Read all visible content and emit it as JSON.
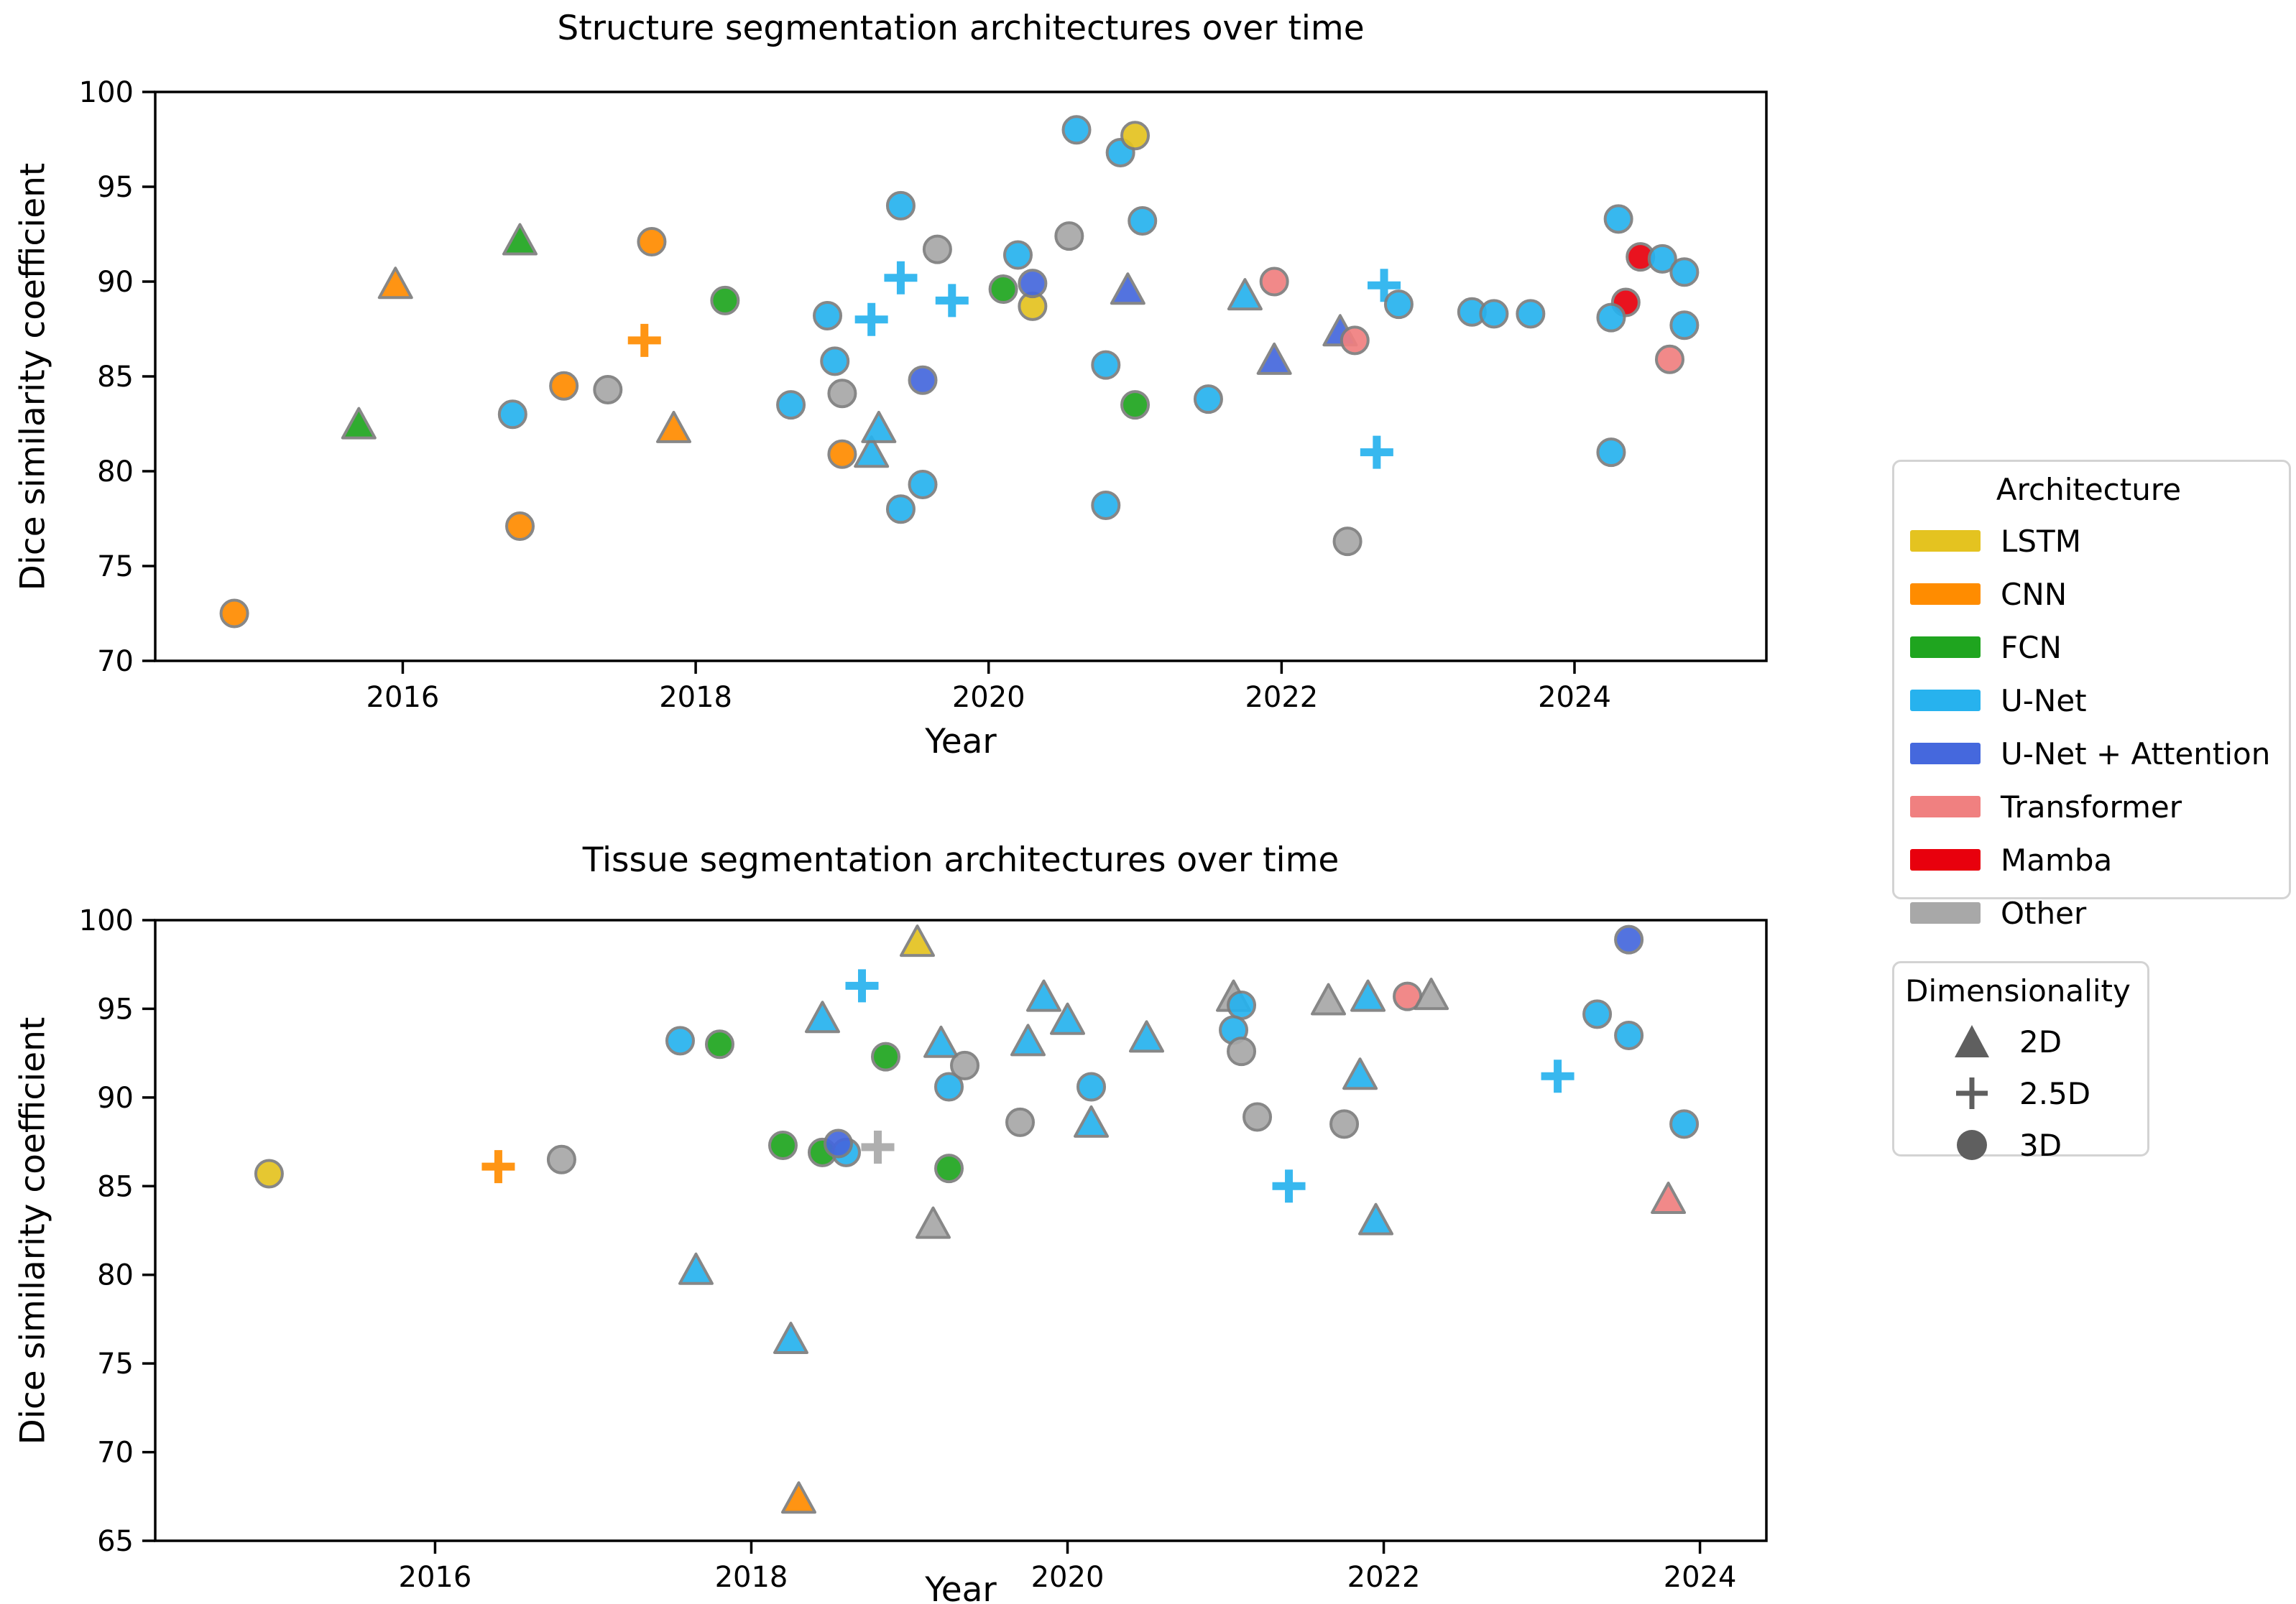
{
  "figure": {
    "background": "#ffffff",
    "marker_edge_color": "#7d7d7d",
    "axis_color": "#000000"
  },
  "colors": {
    "LSTM": "#e4c320",
    "CNN": "#ff8c00",
    "FCN": "#1fa51f",
    "U-Net": "#27b2ee",
    "U-Net + Attention": "#4568dd",
    "Transformer": "#f08080",
    "Mamba": "#e8000d",
    "Other": "#a8a8a8"
  },
  "legend_architecture": {
    "title": "Architecture",
    "entries": [
      {
        "label": "LSTM",
        "color": "#e4c320"
      },
      {
        "label": "CNN",
        "color": "#ff8c00"
      },
      {
        "label": "FCN",
        "color": "#1fa51f"
      },
      {
        "label": "U-Net",
        "color": "#27b2ee"
      },
      {
        "label": "U-Net + Attention",
        "color": "#4568dd"
      },
      {
        "label": "Transformer",
        "color": "#f08080"
      },
      {
        "label": "Mamba",
        "color": "#e8000d"
      },
      {
        "label": "Other",
        "color": "#a8a8a8"
      }
    ]
  },
  "legend_dimensionality": {
    "title": "Dimensionality",
    "marker_color": "#5f5f5f",
    "entries": [
      {
        "label": "2D",
        "marker": "triangle"
      },
      {
        "label": "2.5D",
        "marker": "plus"
      },
      {
        "label": "3D",
        "marker": "circle"
      }
    ]
  },
  "chart_data": {
    "type": "scatter",
    "charts": [
      {
        "id": "structure",
        "title": "Structure segmentation architectures over time",
        "xlabel": "Year",
        "ylabel": "Dice similarity coefficient",
        "xlim": [
          2014.31,
          2025.31
        ],
        "ylim": [
          70,
          100
        ],
        "xticks": [
          2016,
          2018,
          2020,
          2022,
          2024
        ],
        "yticks": [
          70,
          75,
          80,
          85,
          90,
          95,
          100
        ],
        "grid": false,
        "points": [
          {
            "x": 2014.85,
            "y": 72.5,
            "arch": "CNN",
            "dim": "3D"
          },
          {
            "x": 2015.7,
            "y": 82.4,
            "arch": "FCN",
            "dim": "2D"
          },
          {
            "x": 2015.95,
            "y": 89.8,
            "arch": "CNN",
            "dim": "2D"
          },
          {
            "x": 2016.75,
            "y": 83.0,
            "arch": "U-Net",
            "dim": "3D"
          },
          {
            "x": 2016.8,
            "y": 92.1,
            "arch": "FCN",
            "dim": "2D"
          },
          {
            "x": 2016.8,
            "y": 77.1,
            "arch": "CNN",
            "dim": "3D"
          },
          {
            "x": 2017.1,
            "y": 84.5,
            "arch": "CNN",
            "dim": "3D"
          },
          {
            "x": 2017.4,
            "y": 84.3,
            "arch": "Other",
            "dim": "3D"
          },
          {
            "x": 2017.65,
            "y": 86.9,
            "arch": "CNN",
            "dim": "2.5D"
          },
          {
            "x": 2017.7,
            "y": 92.1,
            "arch": "CNN",
            "dim": "3D"
          },
          {
            "x": 2017.85,
            "y": 82.2,
            "arch": "CNN",
            "dim": "2D"
          },
          {
            "x": 2018.2,
            "y": 89.0,
            "arch": "FCN",
            "dim": "3D"
          },
          {
            "x": 2018.65,
            "y": 83.5,
            "arch": "U-Net",
            "dim": "3D"
          },
          {
            "x": 2018.9,
            "y": 88.2,
            "arch": "U-Net",
            "dim": "3D"
          },
          {
            "x": 2018.95,
            "y": 85.8,
            "arch": "U-Net",
            "dim": "3D"
          },
          {
            "x": 2019.0,
            "y": 84.1,
            "arch": "Other",
            "dim": "3D"
          },
          {
            "x": 2019.0,
            "y": 80.9,
            "arch": "CNN",
            "dim": "3D"
          },
          {
            "x": 2019.2,
            "y": 88.0,
            "arch": "U-Net",
            "dim": "2.5D"
          },
          {
            "x": 2019.2,
            "y": 80.9,
            "arch": "U-Net",
            "dim": "2D"
          },
          {
            "x": 2019.25,
            "y": 82.2,
            "arch": "U-Net",
            "dim": "2D"
          },
          {
            "x": 2019.4,
            "y": 94.0,
            "arch": "U-Net",
            "dim": "3D"
          },
          {
            "x": 2019.4,
            "y": 90.2,
            "arch": "U-Net",
            "dim": "2.5D"
          },
          {
            "x": 2019.4,
            "y": 78.0,
            "arch": "U-Net",
            "dim": "3D"
          },
          {
            "x": 2019.55,
            "y": 84.8,
            "arch": "U-Net + Attention",
            "dim": "3D"
          },
          {
            "x": 2019.55,
            "y": 79.3,
            "arch": "U-Net",
            "dim": "3D"
          },
          {
            "x": 2019.65,
            "y": 91.7,
            "arch": "Other",
            "dim": "3D"
          },
          {
            "x": 2019.75,
            "y": 89.0,
            "arch": "U-Net",
            "dim": "2.5D"
          },
          {
            "x": 2020.1,
            "y": 89.6,
            "arch": "FCN",
            "dim": "3D"
          },
          {
            "x": 2020.2,
            "y": 91.4,
            "arch": "U-Net",
            "dim": "3D"
          },
          {
            "x": 2020.3,
            "y": 88.7,
            "arch": "LSTM",
            "dim": "3D"
          },
          {
            "x": 2020.3,
            "y": 89.9,
            "arch": "U-Net + Attention",
            "dim": "3D"
          },
          {
            "x": 2020.55,
            "y": 92.4,
            "arch": "Other",
            "dim": "3D"
          },
          {
            "x": 2020.6,
            "y": 98.0,
            "arch": "U-Net",
            "dim": "3D"
          },
          {
            "x": 2020.8,
            "y": 85.6,
            "arch": "U-Net",
            "dim": "3D"
          },
          {
            "x": 2020.8,
            "y": 78.2,
            "arch": "U-Net",
            "dim": "3D"
          },
          {
            "x": 2020.9,
            "y": 96.8,
            "arch": "U-Net",
            "dim": "3D"
          },
          {
            "x": 2020.95,
            "y": 89.5,
            "arch": "U-Net + Attention",
            "dim": "2D"
          },
          {
            "x": 2021.0,
            "y": 97.7,
            "arch": "LSTM",
            "dim": "3D"
          },
          {
            "x": 2021.0,
            "y": 83.5,
            "arch": "FCN",
            "dim": "3D"
          },
          {
            "x": 2021.05,
            "y": 93.2,
            "arch": "U-Net",
            "dim": "3D"
          },
          {
            "x": 2021.5,
            "y": 83.8,
            "arch": "U-Net",
            "dim": "3D"
          },
          {
            "x": 2021.75,
            "y": 89.2,
            "arch": "U-Net",
            "dim": "2D"
          },
          {
            "x": 2021.95,
            "y": 90.0,
            "arch": "Transformer",
            "dim": "3D"
          },
          {
            "x": 2021.95,
            "y": 85.8,
            "arch": "U-Net + Attention",
            "dim": "2D"
          },
          {
            "x": 2022.4,
            "y": 87.3,
            "arch": "U-Net + Attention",
            "dim": "2D"
          },
          {
            "x": 2022.45,
            "y": 76.3,
            "arch": "Other",
            "dim": "3D"
          },
          {
            "x": 2022.5,
            "y": 86.9,
            "arch": "Transformer",
            "dim": "3D"
          },
          {
            "x": 2022.65,
            "y": 81.0,
            "arch": "U-Net",
            "dim": "2.5D"
          },
          {
            "x": 2022.7,
            "y": 89.8,
            "arch": "U-Net",
            "dim": "2.5D"
          },
          {
            "x": 2022.8,
            "y": 88.8,
            "arch": "U-Net",
            "dim": "3D"
          },
          {
            "x": 2023.3,
            "y": 88.4,
            "arch": "U-Net",
            "dim": "3D"
          },
          {
            "x": 2023.45,
            "y": 88.3,
            "arch": "U-Net",
            "dim": "3D"
          },
          {
            "x": 2023.7,
            "y": 88.3,
            "arch": "U-Net",
            "dim": "3D"
          },
          {
            "x": 2024.35,
            "y": 88.9,
            "arch": "Mamba",
            "dim": "3D"
          },
          {
            "x": 2024.25,
            "y": 88.1,
            "arch": "U-Net",
            "dim": "3D"
          },
          {
            "x": 2024.25,
            "y": 81.0,
            "arch": "U-Net",
            "dim": "3D"
          },
          {
            "x": 2024.3,
            "y": 93.3,
            "arch": "U-Net",
            "dim": "3D"
          },
          {
            "x": 2024.45,
            "y": 91.3,
            "arch": "Mamba",
            "dim": "3D"
          },
          {
            "x": 2024.6,
            "y": 91.2,
            "arch": "U-Net",
            "dim": "3D"
          },
          {
            "x": 2024.65,
            "y": 85.9,
            "arch": "Transformer",
            "dim": "3D"
          },
          {
            "x": 2024.75,
            "y": 90.5,
            "arch": "U-Net",
            "dim": "3D"
          },
          {
            "x": 2024.75,
            "y": 87.7,
            "arch": "U-Net",
            "dim": "3D"
          }
        ]
      },
      {
        "id": "tissue",
        "title": "Tissue segmentation architectures over time",
        "xlabel": "Year",
        "ylabel": "Dice similarity coefficient",
        "xlim": [
          2014.23,
          2024.42
        ],
        "ylim": [
          65,
          100
        ],
        "xticks": [
          2016,
          2018,
          2020,
          2022,
          2024
        ],
        "yticks": [
          65,
          70,
          75,
          80,
          85,
          90,
          95,
          100
        ],
        "grid": false,
        "points": [
          {
            "x": 2014.95,
            "y": 85.7,
            "arch": "LSTM",
            "dim": "3D"
          },
          {
            "x": 2016.4,
            "y": 86.1,
            "arch": "CNN",
            "dim": "2.5D"
          },
          {
            "x": 2016.8,
            "y": 86.5,
            "arch": "Other",
            "dim": "3D"
          },
          {
            "x": 2017.55,
            "y": 93.2,
            "arch": "U-Net",
            "dim": "3D"
          },
          {
            "x": 2017.65,
            "y": 80.2,
            "arch": "U-Net",
            "dim": "2D"
          },
          {
            "x": 2017.8,
            "y": 93.0,
            "arch": "FCN",
            "dim": "3D"
          },
          {
            "x": 2018.2,
            "y": 87.3,
            "arch": "FCN",
            "dim": "3D"
          },
          {
            "x": 2018.25,
            "y": 76.3,
            "arch": "U-Net",
            "dim": "2D"
          },
          {
            "x": 2018.3,
            "y": 67.3,
            "arch": "CNN",
            "dim": "2D"
          },
          {
            "x": 2018.45,
            "y": 94.4,
            "arch": "U-Net",
            "dim": "2D"
          },
          {
            "x": 2018.45,
            "y": 86.9,
            "arch": "FCN",
            "dim": "3D"
          },
          {
            "x": 2018.6,
            "y": 86.9,
            "arch": "U-Net",
            "dim": "3D"
          },
          {
            "x": 2018.55,
            "y": 87.4,
            "arch": "U-Net + Attention",
            "dim": "3D"
          },
          {
            "x": 2018.7,
            "y": 96.3,
            "arch": "U-Net",
            "dim": "2.5D"
          },
          {
            "x": 2018.8,
            "y": 87.2,
            "arch": "Other",
            "dim": "2.5D"
          },
          {
            "x": 2018.85,
            "y": 92.3,
            "arch": "FCN",
            "dim": "3D"
          },
          {
            "x": 2019.05,
            "y": 98.7,
            "arch": "LSTM",
            "dim": "2D"
          },
          {
            "x": 2019.15,
            "y": 82.8,
            "arch": "Other",
            "dim": "2D"
          },
          {
            "x": 2019.2,
            "y": 93.0,
            "arch": "U-Net",
            "dim": "2D"
          },
          {
            "x": 2019.25,
            "y": 90.6,
            "arch": "U-Net",
            "dim": "3D"
          },
          {
            "x": 2019.25,
            "y": 86.0,
            "arch": "FCN",
            "dim": "3D"
          },
          {
            "x": 2019.35,
            "y": 91.8,
            "arch": "Other",
            "dim": "3D"
          },
          {
            "x": 2019.7,
            "y": 88.6,
            "arch": "Other",
            "dim": "3D"
          },
          {
            "x": 2019.75,
            "y": 93.1,
            "arch": "U-Net",
            "dim": "2D"
          },
          {
            "x": 2019.85,
            "y": 95.6,
            "arch": "U-Net",
            "dim": "2D"
          },
          {
            "x": 2020.0,
            "y": 94.3,
            "arch": "U-Net",
            "dim": "2D"
          },
          {
            "x": 2020.15,
            "y": 90.6,
            "arch": "U-Net",
            "dim": "3D"
          },
          {
            "x": 2020.15,
            "y": 88.5,
            "arch": "U-Net",
            "dim": "2D"
          },
          {
            "x": 2020.5,
            "y": 93.3,
            "arch": "U-Net",
            "dim": "2D"
          },
          {
            "x": 2021.05,
            "y": 95.6,
            "arch": "Other",
            "dim": "2D"
          },
          {
            "x": 2021.1,
            "y": 95.2,
            "arch": "U-Net",
            "dim": "3D"
          },
          {
            "x": 2021.05,
            "y": 93.8,
            "arch": "U-Net",
            "dim": "3D"
          },
          {
            "x": 2021.1,
            "y": 92.6,
            "arch": "Other",
            "dim": "3D"
          },
          {
            "x": 2021.2,
            "y": 88.9,
            "arch": "Other",
            "dim": "3D"
          },
          {
            "x": 2021.4,
            "y": 85.0,
            "arch": "U-Net",
            "dim": "2.5D"
          },
          {
            "x": 2021.65,
            "y": 95.4,
            "arch": "Other",
            "dim": "2D"
          },
          {
            "x": 2021.9,
            "y": 95.6,
            "arch": "U-Net",
            "dim": "2D"
          },
          {
            "x": 2021.85,
            "y": 91.2,
            "arch": "U-Net",
            "dim": "2D"
          },
          {
            "x": 2021.75,
            "y": 88.5,
            "arch": "Other",
            "dim": "3D"
          },
          {
            "x": 2021.95,
            "y": 83.0,
            "arch": "U-Net",
            "dim": "2D"
          },
          {
            "x": 2022.15,
            "y": 95.7,
            "arch": "Transformer",
            "dim": "3D"
          },
          {
            "x": 2022.3,
            "y": 95.7,
            "arch": "Other",
            "dim": "2D"
          },
          {
            "x": 2023.1,
            "y": 91.2,
            "arch": "U-Net",
            "dim": "2.5D"
          },
          {
            "x": 2023.35,
            "y": 94.7,
            "arch": "U-Net",
            "dim": "3D"
          },
          {
            "x": 2023.55,
            "y": 98.9,
            "arch": "U-Net + Attention",
            "dim": "3D"
          },
          {
            "x": 2023.55,
            "y": 93.5,
            "arch": "U-Net",
            "dim": "3D"
          },
          {
            "x": 2023.9,
            "y": 88.5,
            "arch": "U-Net",
            "dim": "3D"
          },
          {
            "x": 2023.8,
            "y": 84.2,
            "arch": "Transformer",
            "dim": "2D"
          }
        ]
      }
    ]
  }
}
